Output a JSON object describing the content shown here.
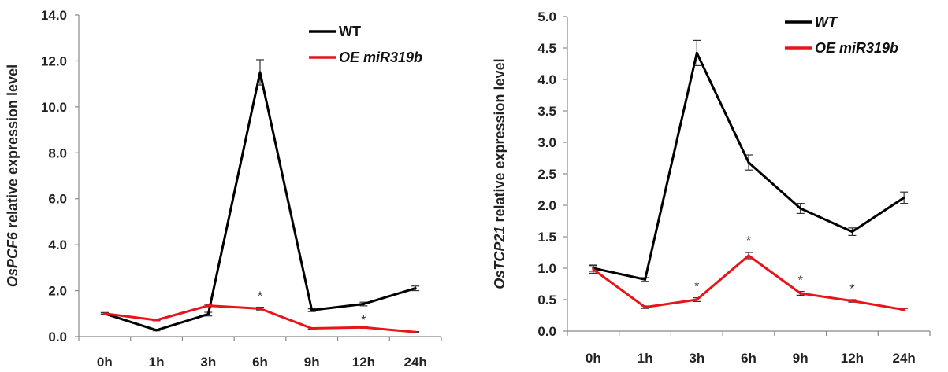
{
  "chart_data": [
    {
      "type": "line",
      "ylabel_gene": "OsPCF6",
      "ylabel_rest": " relative expression level",
      "categories": [
        "0h",
        "1h",
        "3h",
        "6h",
        "9h",
        "12h",
        "24h"
      ],
      "ylim": [
        0,
        14
      ],
      "yticks": [
        "0.0",
        "2.0",
        "4.0",
        "6.0",
        "8.0",
        "10.0",
        "12.0",
        "14.0"
      ],
      "series": [
        {
          "name": "WT",
          "color": "#000000",
          "values": [
            1.0,
            0.28,
            0.98,
            11.5,
            1.15,
            1.42,
            2.1
          ],
          "errors": [
            0.05,
            0.03,
            0.08,
            0.55,
            0.06,
            0.08,
            0.1
          ]
        },
        {
          "name": "OE miR319b",
          "color": "#e8141a",
          "values": [
            1.0,
            0.72,
            1.35,
            1.22,
            0.36,
            0.4,
            0.2
          ],
          "errors": [
            0.03,
            0.03,
            0.05,
            0.06,
            0.03,
            0.03,
            0.02
          ]
        }
      ],
      "legend_italic": [
        false,
        true
      ],
      "annotations": [
        {
          "label": "*",
          "category": "6h",
          "y": 1.8
        },
        {
          "label": "*",
          "category": "12h",
          "y": 0.75
        }
      ]
    },
    {
      "type": "line",
      "ylabel_gene": "OsTCP21",
      "ylabel_rest": " relative expression level",
      "categories": [
        "0h",
        "1h",
        "3h",
        "6h",
        "9h",
        "12h",
        "24h"
      ],
      "ylim": [
        0,
        5
      ],
      "yticks": [
        "0.0",
        "0.5",
        "1.0",
        "1.5",
        "2.0",
        "2.5",
        "3.0",
        "3.5",
        "4.0",
        "4.5",
        "5.0"
      ],
      "series": [
        {
          "name": "WT",
          "color": "#000000",
          "values": [
            1.0,
            0.82,
            4.42,
            2.68,
            1.95,
            1.58,
            2.12
          ],
          "errors": [
            0.05,
            0.03,
            0.2,
            0.12,
            0.08,
            0.06,
            0.09
          ]
        },
        {
          "name": "OE miR319b",
          "color": "#e8141a",
          "values": [
            0.98,
            0.38,
            0.5,
            1.2,
            0.6,
            0.48,
            0.34
          ],
          "errors": [
            0.06,
            0.02,
            0.03,
            0.05,
            0.03,
            0.02,
            0.02
          ]
        }
      ],
      "legend_italic": [
        true,
        true
      ],
      "annotations": [
        {
          "label": "*",
          "category": "3h",
          "y": 0.72
        },
        {
          "label": "*",
          "category": "6h",
          "y": 1.45
        },
        {
          "label": "*",
          "category": "9h",
          "y": 0.82
        },
        {
          "label": "*",
          "category": "12h",
          "y": 0.68
        }
      ]
    }
  ]
}
